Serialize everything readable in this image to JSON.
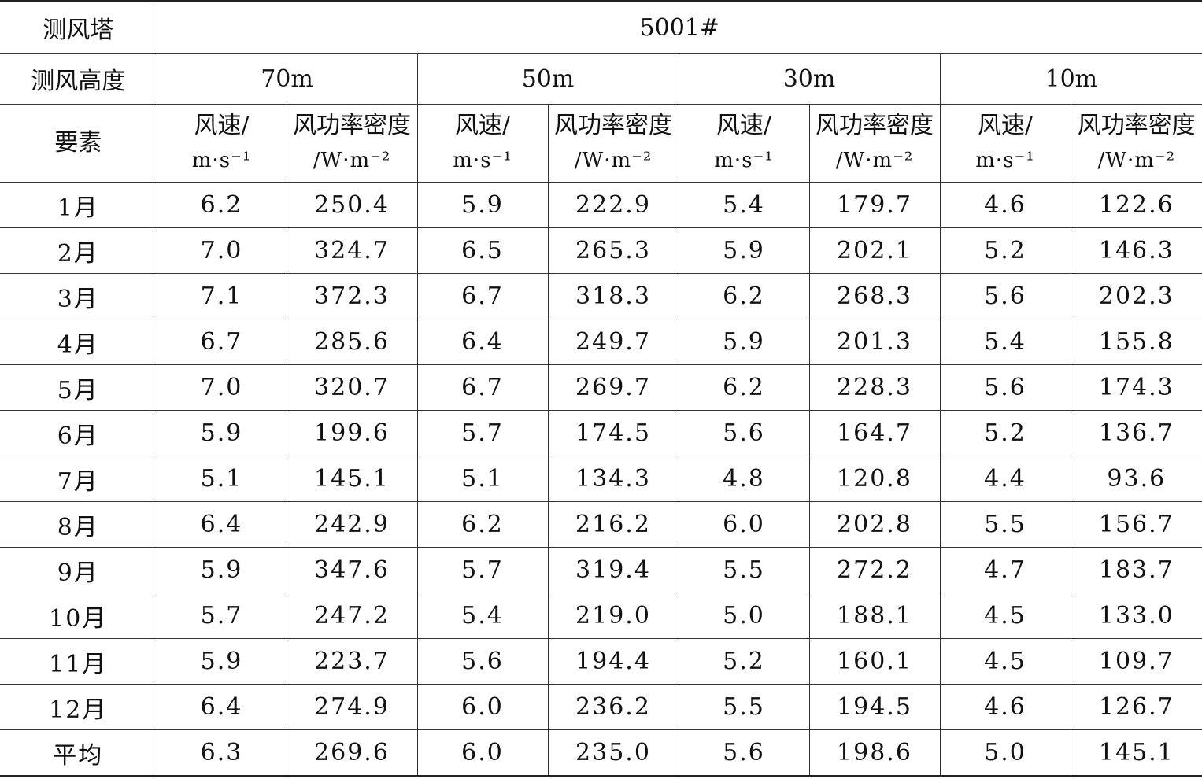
{
  "table": {
    "header": {
      "tower_label": "测风塔",
      "tower_id": "5001#",
      "height_label": "测风高度",
      "heights": [
        "70m",
        "50m",
        "30m",
        "10m"
      ],
      "element_label": "要素",
      "speed_label": "风速/",
      "speed_unit": "m·s⁻¹",
      "density_label": "风功率密度",
      "density_unit": "/W·m⁻²"
    },
    "rows": [
      {
        "month": "1月",
        "values": [
          "6.2",
          "250.4",
          "5.9",
          "222.9",
          "5.4",
          "179.7",
          "4.6",
          "122.6"
        ]
      },
      {
        "month": "2月",
        "values": [
          "7.0",
          "324.7",
          "6.5",
          "265.3",
          "5.9",
          "202.1",
          "5.2",
          "146.3"
        ]
      },
      {
        "month": "3月",
        "values": [
          "7.1",
          "372.3",
          "6.7",
          "318.3",
          "6.2",
          "268.3",
          "5.6",
          "202.3"
        ]
      },
      {
        "month": "4月",
        "values": [
          "6.7",
          "285.6",
          "6.4",
          "249.7",
          "5.9",
          "201.3",
          "5.4",
          "155.8"
        ]
      },
      {
        "month": "5月",
        "values": [
          "7.0",
          "320.7",
          "6.7",
          "269.7",
          "6.2",
          "228.3",
          "5.6",
          "174.3"
        ]
      },
      {
        "month": "6月",
        "values": [
          "5.9",
          "199.6",
          "5.7",
          "174.5",
          "5.6",
          "164.7",
          "5.2",
          "136.7"
        ]
      },
      {
        "month": "7月",
        "values": [
          "5.1",
          "145.1",
          "5.1",
          "134.3",
          "4.8",
          "120.8",
          "4.4",
          "93.6"
        ]
      },
      {
        "month": "8月",
        "values": [
          "6.4",
          "242.9",
          "6.2",
          "216.2",
          "6.0",
          "202.8",
          "5.5",
          "156.7"
        ]
      },
      {
        "month": "9月",
        "values": [
          "5.9",
          "347.6",
          "5.7",
          "319.4",
          "5.5",
          "272.2",
          "4.7",
          "183.7"
        ]
      },
      {
        "month": "10月",
        "values": [
          "5.7",
          "247.2",
          "5.4",
          "219.0",
          "5.0",
          "188.1",
          "4.5",
          "133.0"
        ]
      },
      {
        "month": "11月",
        "values": [
          "5.9",
          "223.7",
          "5.6",
          "194.4",
          "5.2",
          "160.1",
          "4.5",
          "109.7"
        ]
      },
      {
        "month": "12月",
        "values": [
          "6.4",
          "274.9",
          "6.0",
          "236.2",
          "5.5",
          "194.5",
          "4.6",
          "126.7"
        ]
      },
      {
        "month": "平均",
        "values": [
          "6.3",
          "269.6",
          "6.0",
          "235.0",
          "5.6",
          "198.6",
          "5.0",
          "145.1"
        ]
      }
    ]
  }
}
